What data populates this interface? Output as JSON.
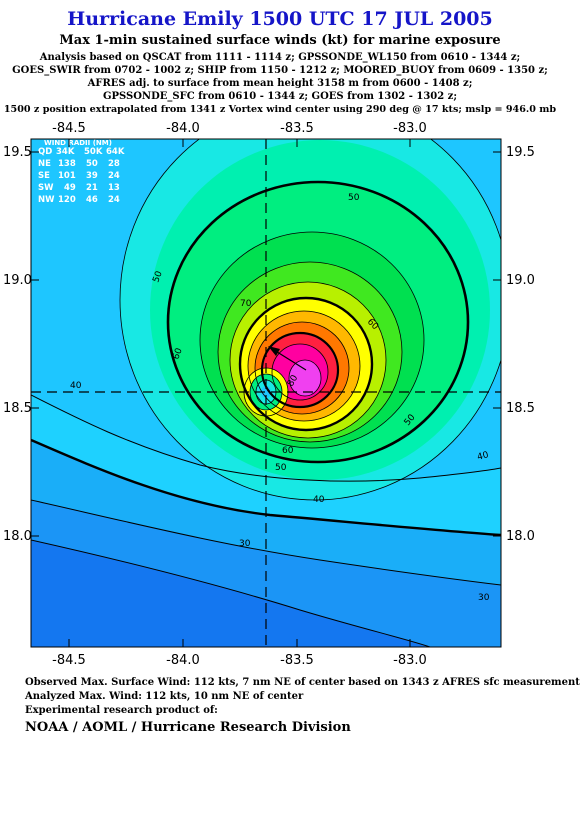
{
  "header": {
    "title": "Hurricane Emily 1500 UTC 17 JUL 2005",
    "subtitle": "Max 1-min sustained surface winds (kt) for marine exposure",
    "analysis_lines": [
      "Analysis based on  QSCAT from 1111 - 1114 z;  GPSSONDE_WL150 from 0610 - 1344 z;",
      "GOES_SWIR from 0702 - 1002 z;  SHIP from 1150 - 1212 z;  MOORED_BUOY from 0609 - 1350 z;",
      "AFRES adj. to surface from mean height 3158 m from 0600 - 1408 z;",
      "GPSSONDE_SFC from 0610 - 1344 z;  GOES from 1302 - 1302 z;",
      "1500 z position extrapolated from 1341 z Vortex wind center using 290 deg @ 17 kts; mslp = 946.0 mb"
    ]
  },
  "axes": {
    "lon_ticks": [
      "-84.5",
      "-84.0",
      "-83.5",
      "-83.0"
    ],
    "lat_ticks": [
      "19.5",
      "19.0",
      "18.5",
      "18.0"
    ]
  },
  "wind_radii": {
    "header": "WIND RADII (NM)",
    "columns": [
      "QD",
      "34K",
      "50K",
      "64K"
    ],
    "rows": [
      [
        "NE",
        "138",
        "50",
        "28"
      ],
      [
        "SE",
        "101",
        "39",
        "24"
      ],
      [
        "SW",
        "49",
        "21",
        "13"
      ],
      [
        "NW",
        "120",
        "46",
        "24"
      ]
    ]
  },
  "contour_labels": {
    "c30": "30",
    "c40": "40",
    "c50": "50",
    "c60": "60",
    "c70": "70",
    "c80": "80"
  },
  "colors": {
    "background": "#1ec6ff",
    "band_20": "#1477f0",
    "band_25": "#1b95f6",
    "band_30": "#1aaef8",
    "band_35": "#1ed1ff",
    "band_40": "#18e8e4",
    "band_45": "#00f0b0",
    "band_50": "#00ee80",
    "band_55": "#00e050",
    "band_60": "#40e820",
    "band_65": "#b8f000",
    "band_70": "#ffff00",
    "band_75": "#ffb800",
    "band_80": "#ff7800",
    "band_85": "#ff2040",
    "band_90": "#ff00a0",
    "band_100": "#f040f0",
    "core": "#1ec6ff"
  },
  "footer": {
    "observed": "Observed Max. Surface Wind: 112 kts, 7 nm NE of center based on 1343 z AFRES sfc measurement",
    "analyzed": "Analyzed Max. Wind: 112 kts, 10 nm NE of center",
    "experimental": "Experimental research product of:",
    "org": "NOAA / AOML / Hurricane Research Division"
  }
}
